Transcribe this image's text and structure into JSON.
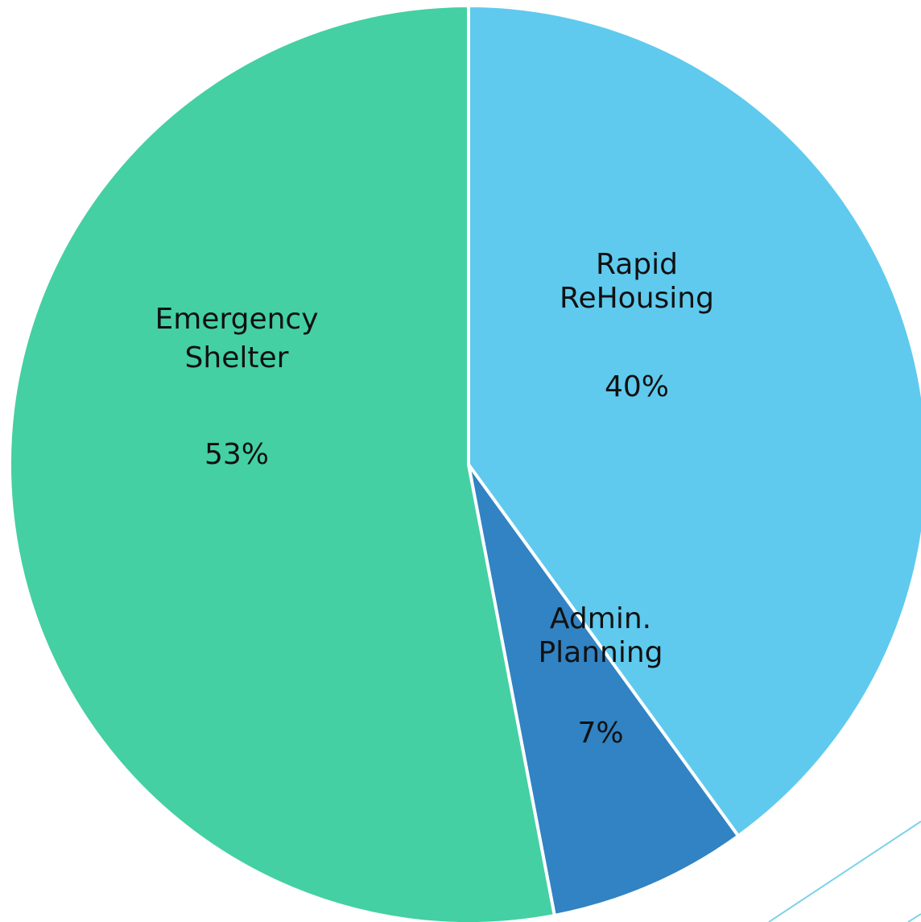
{
  "chart_data": {
    "type": "pie",
    "title": "",
    "slices": [
      {
        "label_lines": [
          "Rapid",
          "ReHousing"
        ],
        "value_label": "40%",
        "value": 40,
        "color": "#5fcaee"
      },
      {
        "label_lines": [
          "Admin.",
          "Planning"
        ],
        "value_label": "7%",
        "value": 7,
        "color": "#3183c3"
      },
      {
        "label_lines": [
          "Emergency",
          "Shelter"
        ],
        "value_label": "53%",
        "value": 53,
        "color": "#44d0a2"
      }
    ],
    "start_angle_deg": 0,
    "direction": "clockwise",
    "legend": "none"
  },
  "colors": {
    "slice_border": "#ffffff",
    "accent_line": "#7ed3ea",
    "label_text": "#111111"
  }
}
